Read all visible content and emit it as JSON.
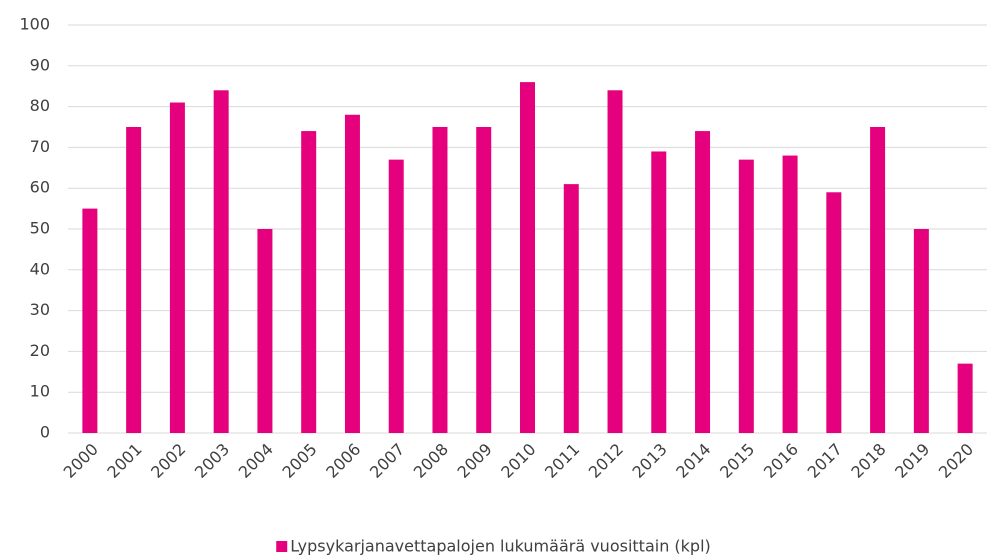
{
  "chart_data": {
    "type": "bar",
    "categories": [
      "2000",
      "2001",
      "2002",
      "2003",
      "2004",
      "2005",
      "2006",
      "2007",
      "2008",
      "2009",
      "2010",
      "2011",
      "2012",
      "2013",
      "2014",
      "2015",
      "2016",
      "2017",
      "2018",
      "2019",
      "2020"
    ],
    "series": [
      {
        "name": "Lypsykarjanavettapalojen lukumäärä vuosittain (kpl)",
        "color": "#e5007d",
        "values": [
          55,
          75,
          81,
          84,
          50,
          74,
          78,
          67,
          75,
          75,
          86,
          61,
          84,
          69,
          74,
          67,
          68,
          59,
          75,
          50,
          17
        ]
      }
    ],
    "ylim": [
      0,
      100
    ],
    "yticks": [
      0,
      10,
      20,
      30,
      40,
      50,
      60,
      70,
      80,
      90,
      100
    ],
    "grid": true,
    "legend": "bottom"
  }
}
